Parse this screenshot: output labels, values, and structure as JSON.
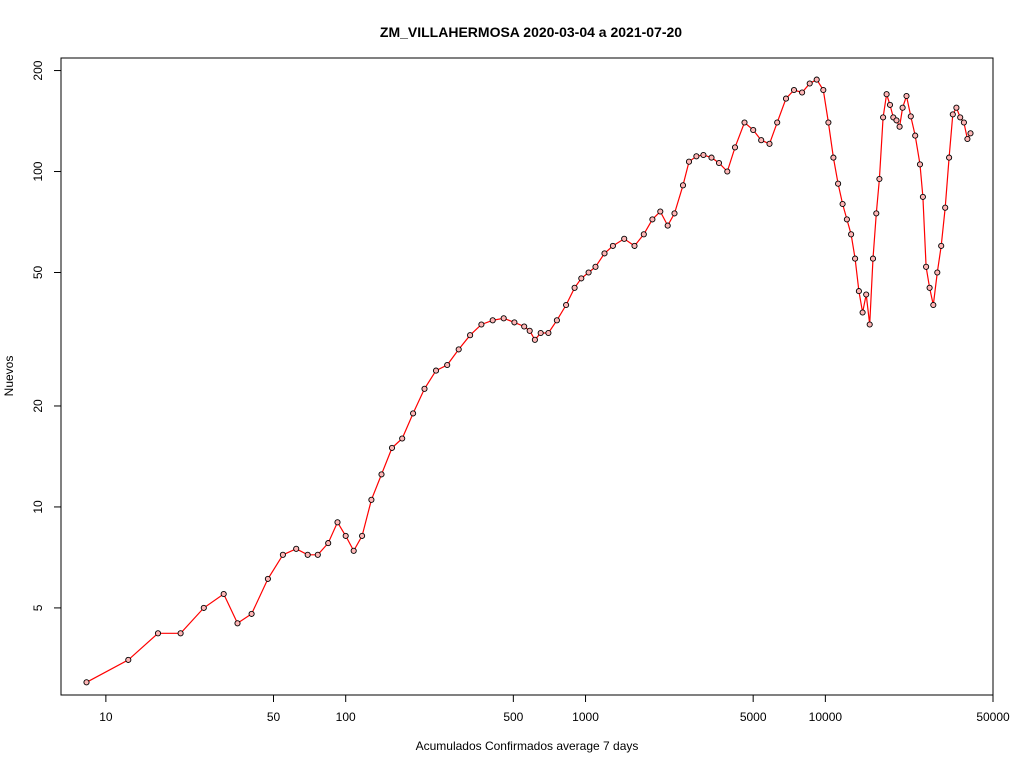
{
  "chart_data": {
    "type": "line",
    "title": "ZM_VILLAHERMOSA 2020-03-04 a 2021-07-20",
    "xlabel": "Acumulados Confirmados average  7  days",
    "ylabel": "Nuevos",
    "xscale": "log",
    "yscale": "log",
    "xlim": [
      6.5,
      50000
    ],
    "ylim": [
      2.75,
      218
    ],
    "xticks": [
      10,
      50,
      100,
      500,
      1000,
      5000,
      10000,
      50000
    ],
    "xtick_labels": [
      "10",
      "50",
      "100",
      "500",
      "1000",
      "5000",
      "10000",
      "50000"
    ],
    "yticks": [
      5,
      10,
      20,
      50,
      100,
      200
    ],
    "ytick_labels": [
      "5",
      "10",
      "20",
      "50",
      "100",
      "200"
    ],
    "grid": false,
    "legend": "none",
    "line_color": "#ff0000",
    "marker_fill": "#ffb6b6",
    "marker_edge": "#000000",
    "series": [
      {
        "x": [
          8.3,
          12.4,
          16.5,
          20.5,
          25.6,
          31.0,
          35.4,
          40.5,
          47.4,
          54.7,
          62.2,
          69.4,
          76.5,
          84.5,
          92.4,
          100,
          108,
          117,
          128,
          141,
          156,
          172,
          191,
          213,
          238,
          265,
          296,
          330,
          368,
          410,
          456,
          505,
          555,
          585,
          615,
          650,
          700,
          760,
          830,
          900,
          960,
          1030,
          1100,
          1200,
          1300,
          1450,
          1600,
          1750,
          1900,
          2050,
          2200,
          2350,
          2550,
          2700,
          2900,
          3100,
          3350,
          3600,
          3900,
          4200,
          4600,
          5000,
          5400,
          5850,
          6300,
          6850,
          7400,
          8000,
          8600,
          9200,
          9800,
          10300,
          10800,
          11300,
          11800,
          12300,
          12800,
          13300,
          13800,
          14300,
          14800,
          15300,
          15800,
          16300,
          16800,
          17400,
          18000,
          18600,
          19200,
          19800,
          20400,
          21000,
          21800,
          22700,
          23700,
          24800,
          25500,
          26300,
          27200,
          28200,
          29300,
          30400,
          31600,
          32800,
          34000,
          35200,
          36500,
          37800,
          39100,
          40300
        ],
        "y": [
          3.0,
          3.5,
          4.2,
          4.2,
          5.0,
          5.5,
          4.5,
          4.8,
          6.1,
          7.2,
          7.5,
          7.2,
          7.2,
          7.8,
          9.0,
          8.2,
          7.4,
          8.2,
          10.5,
          12.5,
          15.0,
          16.0,
          19.0,
          22.5,
          25.5,
          26.5,
          29.5,
          32.5,
          35.0,
          36.0,
          36.5,
          35.5,
          34.5,
          33.5,
          31.5,
          33.0,
          33.0,
          36.0,
          40.0,
          45.0,
          48.0,
          50.0,
          52.0,
          57.0,
          60.0,
          63.0,
          60.0,
          65.0,
          72.0,
          76.0,
          69.0,
          75.0,
          91.0,
          107,
          111,
          112,
          110,
          106,
          100,
          118,
          140,
          133,
          124,
          121,
          140,
          165,
          175,
          172,
          183,
          188,
          175,
          140,
          110,
          92,
          80,
          72,
          65,
          55,
          44,
          38,
          43,
          35,
          55,
          75,
          95,
          145,
          170,
          158,
          145,
          142,
          136,
          155,
          168,
          146,
          128,
          105,
          84,
          52,
          45,
          40,
          50,
          60,
          78,
          110,
          148,
          155,
          145,
          140,
          125,
          130
        ]
      }
    ]
  }
}
